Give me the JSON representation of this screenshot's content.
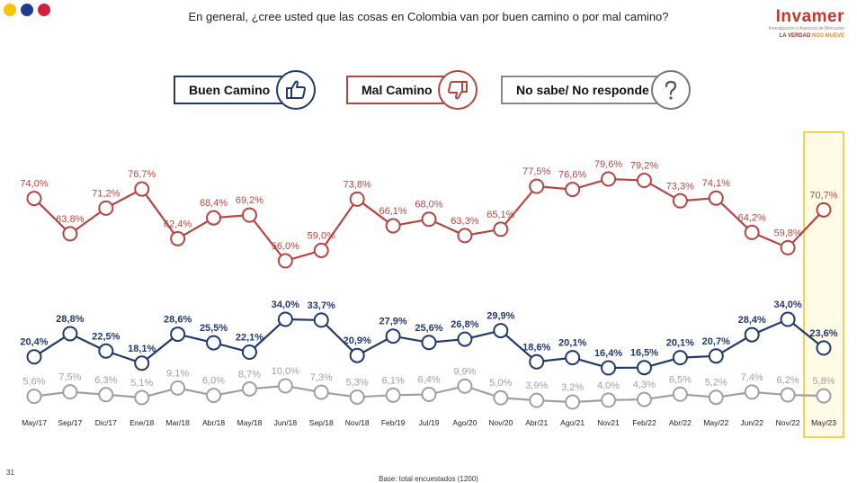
{
  "header": {
    "question": "En general, ¿cree usted que las cosas en Colombia van por buen camino o por mal camino?",
    "dot_colors": [
      "#f5c400",
      "#1f3a93",
      "#d21f3c"
    ]
  },
  "logo": {
    "name": "Invamer",
    "subtitle": "Investigación y Asesoría de Mercados",
    "tagline_a": "LA VERDAD",
    "tagline_b": "NOS MUEVE"
  },
  "legend": {
    "buen_label": "Buen Camino",
    "mal_label": "Mal Camino",
    "ns_label": "No sabe/ No responde",
    "buen_icon": "thumbs-up-icon",
    "mal_icon": "thumbs-down-icon",
    "ns_icon": "question-mark-icon"
  },
  "chart_data": {
    "type": "line",
    "categories": [
      "May/17",
      "Sep/17",
      "Dic/17",
      "Ene/18",
      "Mar/18",
      "Abr/18",
      "May/18",
      "Jun/18",
      "Sep/18",
      "Nov/18",
      "Feb/19",
      "Jul/19",
      "Ago/20",
      "Nov/20",
      "Abr/21",
      "Ago/21",
      "Nov21",
      "Feb/22",
      "Abr/22",
      "May/22",
      "Jun/22",
      "Nov/22",
      "May/23"
    ],
    "series": [
      {
        "name": "Mal Camino",
        "color": "#b5453f",
        "values": [
          74.0,
          63.8,
          71.2,
          76.7,
          62.4,
          68.4,
          69.2,
          56.0,
          59.0,
          73.8,
          66.1,
          68.0,
          63.3,
          65.1,
          77.5,
          76.6,
          79.6,
          79.2,
          73.3,
          74.1,
          64.2,
          59.8,
          70.7
        ]
      },
      {
        "name": "Buen Camino",
        "color": "#1f3a6e",
        "values": [
          20.4,
          28.8,
          22.5,
          18.1,
          28.6,
          25.5,
          22.1,
          34.0,
          33.7,
          20.9,
          27.9,
          25.6,
          26.8,
          29.9,
          18.6,
          20.1,
          16.4,
          16.5,
          20.1,
          20.7,
          28.4,
          34.0,
          23.6
        ]
      },
      {
        "name": "No sabe/ No responde",
        "color": "#a0a0a0",
        "values": [
          5.6,
          7.5,
          6.3,
          5.1,
          9.1,
          6.0,
          8.7,
          10.0,
          7.3,
          5.3,
          6.1,
          6.4,
          9.9,
          5.0,
          3.9,
          3.2,
          4.0,
          4.3,
          6.5,
          5.2,
          7.4,
          6.2,
          5.8
        ]
      }
    ],
    "labels": {
      "Mal Camino": [
        "74,0%",
        "63,8%",
        "71,2%",
        "76,7%",
        "62,4%",
        "68,4%",
        "69,2%",
        "56,0%",
        "59,0%",
        "73,8%",
        "66,1%",
        "68,0%",
        "63,3%",
        "65,1%",
        "77,5%",
        "76,6%",
        "79,6%",
        "79,2%",
        "73,3%",
        "74,1%",
        "64,2%",
        "59,8%",
        "70,7%"
      ],
      "Buen Camino": [
        "20,4%",
        "28,8%",
        "22,5%",
        "18,1%",
        "28,6%",
        "25,5%",
        "22,1%",
        "34,0%",
        "33,7%",
        "20,9%",
        "27,9%",
        "25,6%",
        "26,8%",
        "29,9%",
        "18,6%",
        "20,1%",
        "16,4%",
        "16,5%",
        "20,1%",
        "20,7%",
        "28,4%",
        "34,0%",
        "23,6%"
      ],
      "No sabe/ No responde": [
        "5,6%",
        "7,5%",
        "6,3%",
        "5,1%",
        "9,1%",
        "6,0%",
        "8,7%",
        "10,0%",
        "7,3%",
        "5,3%",
        "6,1%",
        "6,4%",
        "9,9%",
        "5,0%",
        "3,9%",
        "3,2%",
        "4,0%",
        "4,3%",
        "6,5%",
        "5,2%",
        "7,4%",
        "6,2%",
        "5,8%"
      ]
    },
    "highlight_category": "May/23",
    "highlight_color": "#f0c419",
    "grid": false
  },
  "footer": {
    "page_number": "31",
    "base": "Base: total encuestados (1200)"
  }
}
